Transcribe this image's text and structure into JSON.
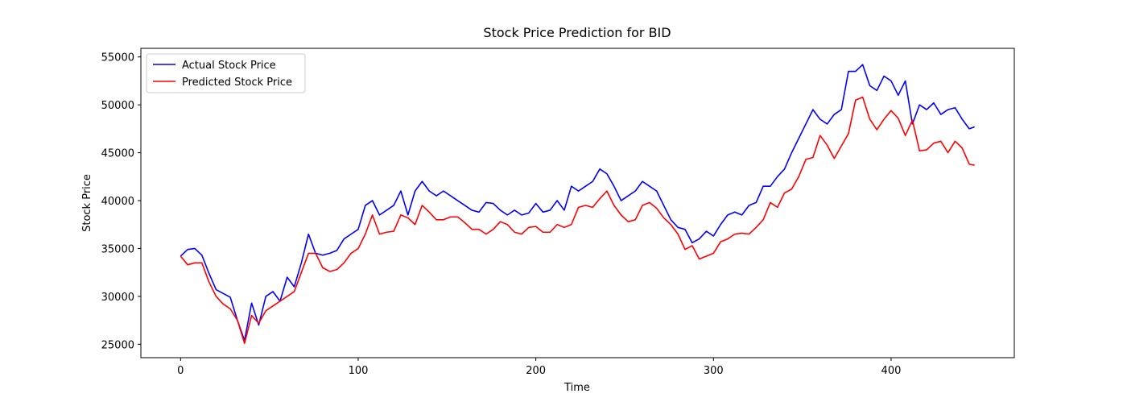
{
  "chart_data": {
    "type": "line",
    "title": "Stock Price Prediction for BID",
    "x_label": "Time",
    "y_label": "Stock Price",
    "x": [
      0,
      4,
      8,
      12,
      16,
      20,
      24,
      28,
      32,
      36,
      40,
      44,
      48,
      52,
      56,
      60,
      64,
      68,
      72,
      76,
      80,
      84,
      88,
      92,
      96,
      100,
      104,
      108,
      112,
      116,
      120,
      124,
      128,
      132,
      136,
      140,
      144,
      148,
      152,
      156,
      160,
      164,
      168,
      172,
      176,
      180,
      184,
      188,
      192,
      196,
      200,
      204,
      208,
      212,
      216,
      220,
      224,
      228,
      232,
      236,
      240,
      244,
      248,
      252,
      256,
      260,
      264,
      268,
      272,
      276,
      280,
      284,
      288,
      292,
      296,
      300,
      304,
      308,
      312,
      316,
      320,
      324,
      328,
      332,
      336,
      340,
      344,
      348,
      352,
      356,
      360,
      364,
      368,
      372,
      376,
      380,
      384,
      388,
      392,
      396,
      400,
      404,
      408,
      412,
      416,
      420,
      424,
      428,
      432,
      436,
      440,
      444,
      447
    ],
    "series": [
      {
        "name": "Actual Stock Price",
        "color": "#0000ff",
        "values": [
          34200,
          34900,
          35000,
          34300,
          32400,
          30700,
          30300,
          29900,
          27500,
          25400,
          29300,
          27000,
          30000,
          30500,
          29500,
          32000,
          31000,
          33500,
          36500,
          34500,
          34300,
          34500,
          34800,
          36000,
          36500,
          37000,
          39500,
          40000,
          38500,
          39000,
          39500,
          41000,
          38500,
          41000,
          42000,
          41000,
          40500,
          41000,
          40500,
          40000,
          39500,
          39000,
          38800,
          39800,
          39700,
          39000,
          38500,
          39000,
          38500,
          38700,
          39700,
          38800,
          39000,
          40000,
          39000,
          41500,
          41000,
          41500,
          42000,
          43300,
          42800,
          41500,
          40000,
          40500,
          41000,
          42000,
          41500,
          41000,
          39500,
          38000,
          37200,
          37000,
          35600,
          36000,
          36800,
          36300,
          37500,
          38500,
          38800,
          38500,
          39500,
          39800,
          41500,
          41500,
          42500,
          43300,
          45000,
          46500,
          48000,
          49500,
          48500,
          48000,
          49000,
          49500,
          53500,
          53500,
          54200,
          52000,
          51500,
          53000,
          52500,
          51000,
          52500,
          48000,
          50000,
          49500,
          50200,
          49000,
          49500,
          49700,
          48500,
          47500,
          47700
        ]
      },
      {
        "name": "Predicted Stock Price",
        "color": "#ff0000",
        "values": [
          34200,
          33300,
          33500,
          33500,
          31500,
          30000,
          29200,
          28700,
          27500,
          25100,
          28000,
          27200,
          28500,
          29000,
          29500,
          30000,
          30500,
          32500,
          34500,
          34500,
          33000,
          32600,
          32800,
          33500,
          34500,
          35000,
          36500,
          38500,
          36500,
          36700,
          36800,
          38500,
          38200,
          37500,
          39500,
          38800,
          38000,
          38000,
          38300,
          38300,
          37700,
          37000,
          37000,
          36500,
          37000,
          37800,
          37500,
          36700,
          36500,
          37200,
          37300,
          36700,
          36700,
          37500,
          37200,
          37500,
          39300,
          39500,
          39300,
          40200,
          41000,
          39500,
          38500,
          37800,
          38000,
          39500,
          39800,
          39200,
          38200,
          37500,
          36500,
          34900,
          35300,
          33900,
          34200,
          34500,
          35700,
          36000,
          36500,
          36600,
          36500,
          37200,
          38000,
          39800,
          39300,
          40800,
          41200,
          42500,
          44300,
          44500,
          46800,
          45800,
          44400,
          45700,
          47000,
          50500,
          50800,
          48500,
          47400,
          48500,
          49400,
          48600,
          46800,
          48400,
          45200,
          45300,
          46000,
          46200,
          45000,
          46200,
          45500,
          43800,
          43700
        ]
      }
    ],
    "xlim": [
      -22.35,
      469.35
    ],
    "ylim": [
      23600,
      55900
    ],
    "xticks": [
      0,
      100,
      200,
      300,
      400
    ],
    "yticks": [
      25000,
      30000,
      35000,
      40000,
      45000,
      50000,
      55000
    ],
    "legend": "upper left"
  }
}
